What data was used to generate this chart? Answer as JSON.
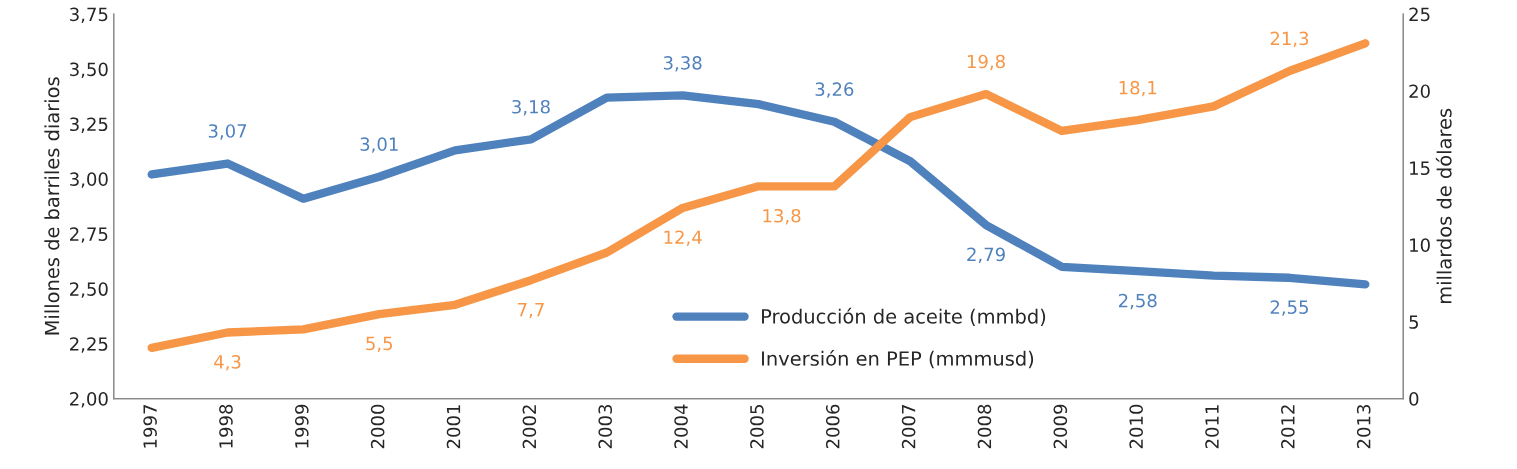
{
  "chart_data": {
    "type": "line",
    "ylabel": "Millones de barriles diarios",
    "y2label": "millardos de dólares",
    "categories": [
      "1997",
      "1998",
      "1999",
      "2000",
      "2001",
      "2002",
      "2003",
      "2004",
      "2005",
      "2006",
      "2007",
      "2008",
      "2009",
      "2010",
      "2011",
      "2012",
      "2013"
    ],
    "series": [
      {
        "name": "Producción de aceite (mmbd)",
        "color": "#4f81bd",
        "values": [
          3.02,
          3.07,
          2.91,
          3.01,
          3.13,
          3.18,
          3.37,
          3.38,
          3.34,
          3.26,
          3.08,
          2.79,
          2.6,
          2.58,
          2.56,
          2.55,
          2.52
        ],
        "value_labels": [
          null,
          "3,07",
          null,
          "3,01",
          null,
          "3,18",
          null,
          "3,38",
          null,
          "3,26",
          null,
          "2,79",
          null,
          "2,58",
          null,
          "2,55",
          null
        ]
      },
      {
        "name": "Inversión en PEP (mmmusd)",
        "color": "#f79646",
        "axis": "y2",
        "values": [
          3.3,
          4.3,
          4.5,
          5.5,
          6.1,
          7.7,
          9.5,
          12.4,
          13.8,
          13.8,
          18.3,
          19.8,
          17.4,
          18.1,
          19.0,
          21.3,
          23.1
        ],
        "value_labels": [
          null,
          "4,3",
          null,
          "5,5",
          null,
          "7,7",
          null,
          "12,4",
          null,
          "13,8",
          null,
          "19,8",
          null,
          "18,1",
          null,
          "21,3",
          null
        ]
      }
    ],
    "ylim": [
      2.0,
      3.75
    ],
    "yticks": [
      {
        "value": 2.0,
        "label": "2,00"
      },
      {
        "value": 2.25,
        "label": "2,25"
      },
      {
        "value": 2.5,
        "label": "2,50"
      },
      {
        "value": 2.75,
        "label": "2,75"
      },
      {
        "value": 3.0,
        "label": "3,00"
      },
      {
        "value": 3.25,
        "label": "3,25"
      },
      {
        "value": 3.5,
        "label": "3,50"
      },
      {
        "value": 3.75,
        "label": "3,75"
      }
    ],
    "y2lim": [
      0,
      25
    ],
    "y2ticks": [
      0,
      5,
      10,
      15,
      20,
      25
    ],
    "legend": "bottom",
    "grid": false,
    "marker": "none",
    "line_style": "solid"
  }
}
